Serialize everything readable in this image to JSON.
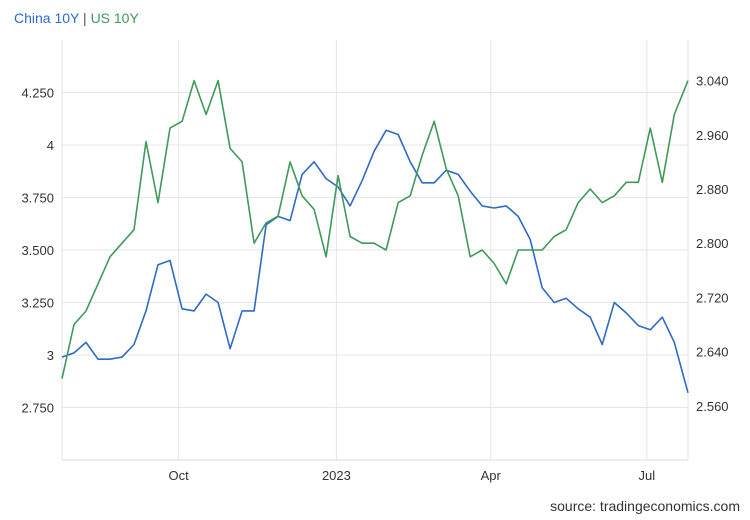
{
  "legend": {
    "series1": "China 10Y",
    "separator": "|",
    "series2": "US 10Y"
  },
  "source": "source: tradingeconomics.com",
  "chart_data": {
    "type": "line",
    "grid": true,
    "x_range": [
      "2022-07-25",
      "2023-07-25"
    ],
    "x_ticks": [
      {
        "label": "Oct",
        "date": "2022-10-01"
      },
      {
        "label": "2023",
        "date": "2023-01-01"
      },
      {
        "label": "Apr",
        "date": "2023-04-01"
      },
      {
        "label": "Jul",
        "date": "2023-07-01"
      }
    ],
    "left_axis": {
      "ylim": [
        2.5,
        4.5
      ],
      "ticks": [
        "2.750",
        "3",
        "3.250",
        "3.500",
        "3.750",
        "4",
        "4.250"
      ],
      "tick_values": [
        2.75,
        3.0,
        3.25,
        3.5,
        3.75,
        4.0,
        4.25
      ]
    },
    "right_axis": {
      "ylim": [
        2.48,
        3.1
      ],
      "ticks": [
        "2.560",
        "2.640",
        "2.720",
        "2.800",
        "2.880",
        "2.960",
        "3.040"
      ],
      "tick_values": [
        2.56,
        2.64,
        2.72,
        2.8,
        2.88,
        2.96,
        3.04
      ]
    },
    "series": [
      {
        "name": "China 10Y",
        "axis": "left",
        "color": "#2f6bc6",
        "points": [
          [
            "2022-07-25",
            2.99
          ],
          [
            "2022-08-01",
            3.01
          ],
          [
            "2022-08-08",
            3.06
          ],
          [
            "2022-08-15",
            2.98
          ],
          [
            "2022-08-22",
            2.98
          ],
          [
            "2022-08-29",
            2.99
          ],
          [
            "2022-09-05",
            3.05
          ],
          [
            "2022-09-12",
            3.21
          ],
          [
            "2022-09-19",
            3.43
          ],
          [
            "2022-09-26",
            3.45
          ],
          [
            "2022-10-03",
            3.22
          ],
          [
            "2022-10-10",
            3.21
          ],
          [
            "2022-10-17",
            3.29
          ],
          [
            "2022-10-24",
            3.25
          ],
          [
            "2022-10-31",
            3.03
          ],
          [
            "2022-11-07",
            3.21
          ],
          [
            "2022-11-14",
            3.21
          ],
          [
            "2022-11-21",
            3.62
          ],
          [
            "2022-11-28",
            3.66
          ],
          [
            "2022-12-05",
            3.64
          ],
          [
            "2022-12-12",
            3.86
          ],
          [
            "2022-12-19",
            3.92
          ],
          [
            "2022-12-26",
            3.84
          ],
          [
            "2023-01-02",
            3.8
          ],
          [
            "2023-01-09",
            3.71
          ],
          [
            "2023-01-16",
            3.83
          ],
          [
            "2023-01-23",
            3.97
          ],
          [
            "2023-01-30",
            4.07
          ],
          [
            "2023-02-06",
            4.05
          ],
          [
            "2023-02-13",
            3.92
          ],
          [
            "2023-02-20",
            3.82
          ],
          [
            "2023-02-27",
            3.82
          ],
          [
            "2023-03-06",
            3.88
          ],
          [
            "2023-03-13",
            3.86
          ],
          [
            "2023-03-20",
            3.78
          ],
          [
            "2023-03-27",
            3.71
          ],
          [
            "2023-04-03",
            3.7
          ],
          [
            "2023-04-10",
            3.71
          ],
          [
            "2023-04-17",
            3.66
          ],
          [
            "2023-04-24",
            3.55
          ],
          [
            "2023-05-01",
            3.32
          ],
          [
            "2023-05-08",
            3.25
          ],
          [
            "2023-05-15",
            3.27
          ],
          [
            "2023-05-22",
            3.22
          ],
          [
            "2023-05-29",
            3.18
          ],
          [
            "2023-06-05",
            3.05
          ],
          [
            "2023-06-12",
            3.25
          ],
          [
            "2023-06-19",
            3.2
          ],
          [
            "2023-06-26",
            3.14
          ],
          [
            "2023-07-03",
            3.12
          ],
          [
            "2023-07-10",
            3.18
          ],
          [
            "2023-07-17",
            3.06
          ],
          [
            "2023-07-25",
            2.82
          ]
        ]
      },
      {
        "name": "US 10Y",
        "axis": "right",
        "color": "#3f9a5a",
        "points": [
          [
            "2022-07-25",
            2.6
          ],
          [
            "2022-08-01",
            2.68
          ],
          [
            "2022-08-08",
            2.7
          ],
          [
            "2022-08-15",
            2.74
          ],
          [
            "2022-08-22",
            2.78
          ],
          [
            "2022-08-29",
            2.8
          ],
          [
            "2022-09-05",
            2.82
          ],
          [
            "2022-09-12",
            2.95
          ],
          [
            "2022-09-19",
            2.86
          ],
          [
            "2022-09-26",
            2.97
          ],
          [
            "2022-10-03",
            2.98
          ],
          [
            "2022-10-10",
            3.04
          ],
          [
            "2022-10-17",
            2.99
          ],
          [
            "2022-10-24",
            3.04
          ],
          [
            "2022-10-31",
            2.94
          ],
          [
            "2022-11-07",
            2.92
          ],
          [
            "2022-11-14",
            2.8
          ],
          [
            "2022-11-21",
            2.83
          ],
          [
            "2022-11-28",
            2.84
          ],
          [
            "2022-12-05",
            2.92
          ],
          [
            "2022-12-12",
            2.87
          ],
          [
            "2022-12-19",
            2.85
          ],
          [
            "2022-12-26",
            2.78
          ],
          [
            "2023-01-02",
            2.9
          ],
          [
            "2023-01-09",
            2.81
          ],
          [
            "2023-01-16",
            2.8
          ],
          [
            "2023-01-23",
            2.8
          ],
          [
            "2023-01-30",
            2.79
          ],
          [
            "2023-02-06",
            2.86
          ],
          [
            "2023-02-13",
            2.87
          ],
          [
            "2023-02-20",
            2.93
          ],
          [
            "2023-02-27",
            2.98
          ],
          [
            "2023-03-06",
            2.91
          ],
          [
            "2023-03-13",
            2.87
          ],
          [
            "2023-03-20",
            2.78
          ],
          [
            "2023-03-27",
            2.79
          ],
          [
            "2023-04-03",
            2.77
          ],
          [
            "2023-04-10",
            2.74
          ],
          [
            "2023-04-17",
            2.79
          ],
          [
            "2023-04-24",
            2.79
          ],
          [
            "2023-05-01",
            2.79
          ],
          [
            "2023-05-08",
            2.81
          ],
          [
            "2023-05-15",
            2.82
          ],
          [
            "2023-05-22",
            2.86
          ],
          [
            "2023-05-29",
            2.88
          ],
          [
            "2023-06-05",
            2.86
          ],
          [
            "2023-06-12",
            2.87
          ],
          [
            "2023-06-19",
            2.89
          ],
          [
            "2023-06-26",
            2.89
          ],
          [
            "2023-07-03",
            2.97
          ],
          [
            "2023-07-10",
            2.89
          ],
          [
            "2023-07-17",
            2.99
          ],
          [
            "2023-07-25",
            3.04
          ]
        ]
      }
    ]
  }
}
